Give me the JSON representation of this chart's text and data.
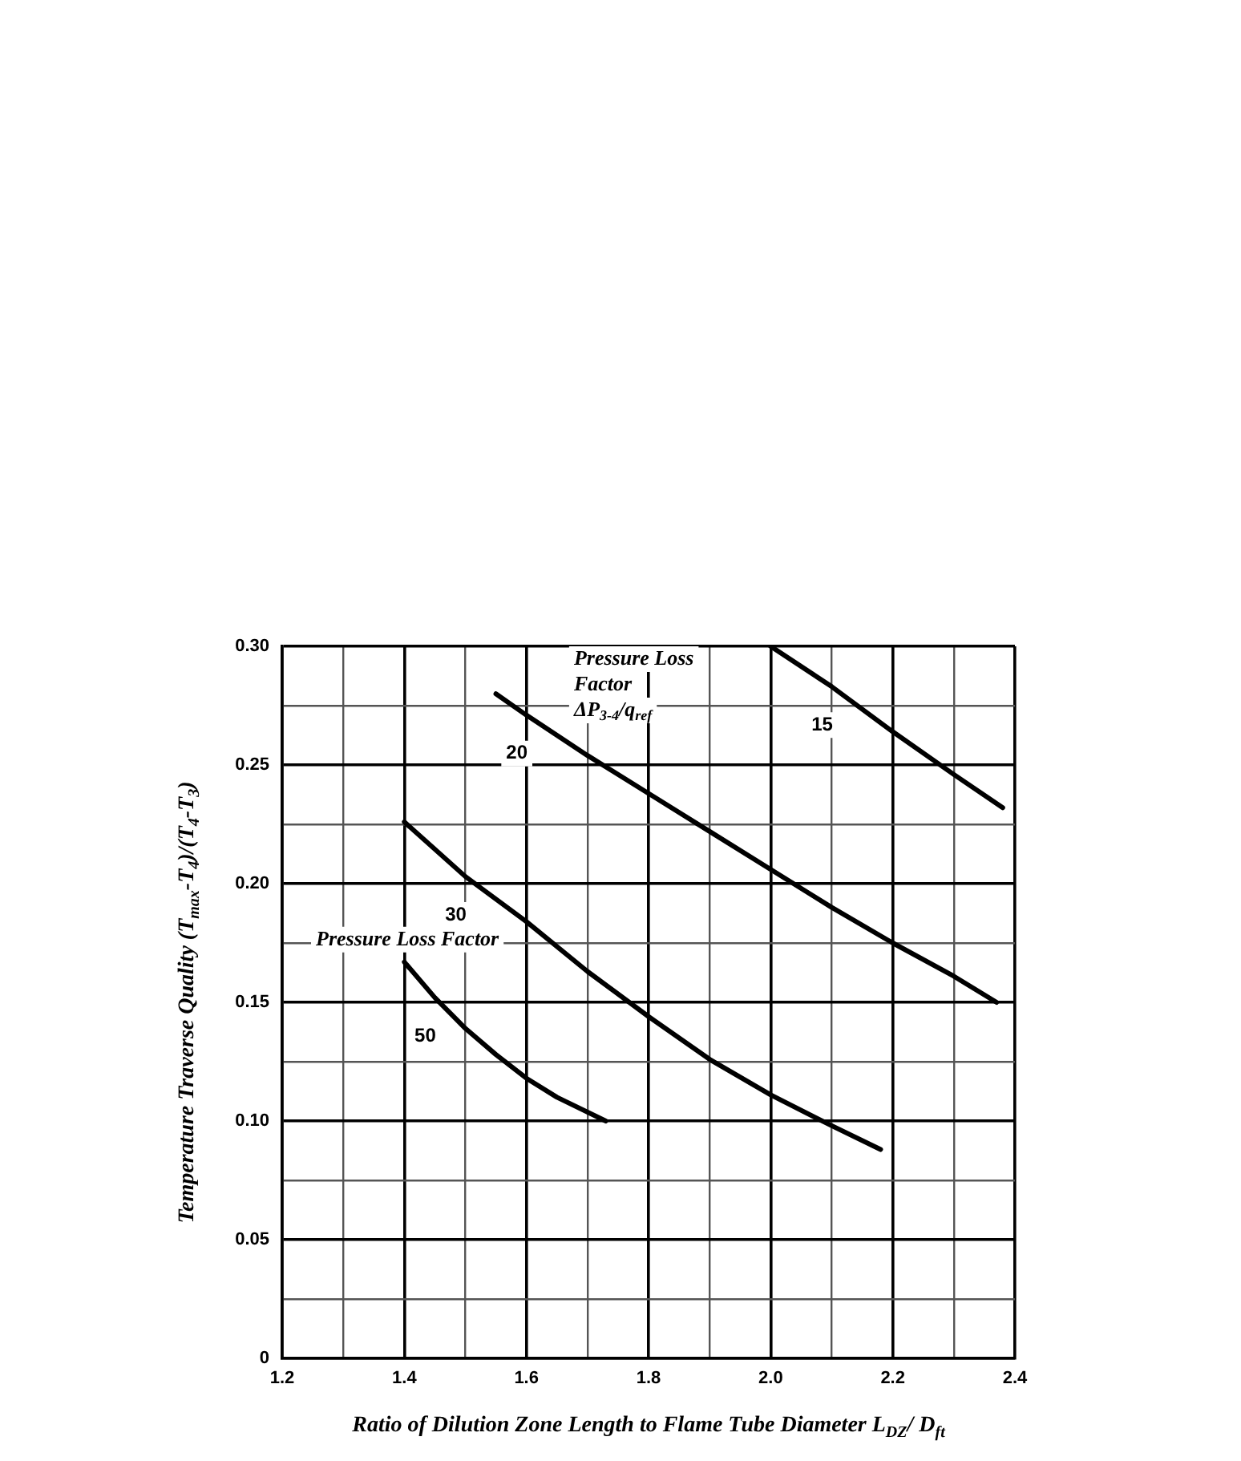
{
  "chart_data": {
    "type": "line",
    "xlabel": "Ratio of Dilution Zone Length to Flame Tube Diameter L$_{DZ}$/ D$_{ft}$",
    "ylabel": "Temperature Traverse Quality (T$_{max}$-T$_{4}$)/(T$_{4}$-T$_{3}$)",
    "annotations": [
      "Pressure Loss Factor ΔP$_{3-4}$/q$_{ref}$",
      "Pressure Loss Factor"
    ],
    "xlim": [
      1.2,
      2.4
    ],
    "xticks": [
      1.2,
      {
        "value": 1.3,
        "label": null
      },
      1.4,
      {
        "value": 1.5,
        "label": null
      },
      1.6,
      {
        "value": 1.7,
        "label": null
      },
      1.8,
      {
        "value": 1.9,
        "label": null
      },
      {
        "value": 2,
        "label": "2.0"
      },
      {
        "value": 2.1,
        "label": null
      },
      2.2,
      {
        "value": 2.3,
        "label": null
      },
      2.4
    ],
    "ylim": [
      0,
      0.3
    ],
    "yticks": [
      0,
      {
        "value": 0.025,
        "label": null
      },
      0.05,
      {
        "value": 0.075,
        "label": null
      },
      {
        "value": 0.1,
        "label": "0.10"
      },
      {
        "value": 0.125,
        "label": null
      },
      0.15,
      {
        "value": 0.175,
        "label": null
      },
      {
        "value": 0.2,
        "label": "0.20"
      },
      {
        "value": 0.225,
        "label": null
      },
      0.25,
      {
        "value": 0.275,
        "label": null
      },
      {
        "value": 0.3,
        "label": "0.30"
      }
    ],
    "grid": true,
    "legend": false,
    "marker": "none",
    "line_style": "solid",
    "series": [
      {
        "name": "15",
        "color": "#000000",
        "x": [
          2.0,
          2.1,
          2.2,
          2.3,
          2.38
        ],
        "values": [
          0.3,
          0.283,
          0.264,
          0.246,
          0.232
        ]
      },
      {
        "name": "20",
        "color": "#000000",
        "x": [
          1.55,
          1.6,
          1.7,
          1.8,
          1.9,
          2.0,
          2.1,
          2.2,
          2.3,
          2.37
        ],
        "values": [
          0.28,
          0.271,
          0.254,
          0.238,
          0.222,
          0.206,
          0.19,
          0.175,
          0.161,
          0.15
        ]
      },
      {
        "name": "30",
        "color": "#000000",
        "x": [
          1.4,
          1.5,
          1.6,
          1.7,
          1.8,
          1.9,
          2.0,
          2.1,
          2.18
        ],
        "values": [
          0.226,
          0.203,
          0.184,
          0.163,
          0.144,
          0.126,
          0.111,
          0.098,
          0.088
        ]
      },
      {
        "name": "50",
        "color": "#000000",
        "x": [
          1.4,
          1.45,
          1.5,
          1.55,
          1.6,
          1.65,
          1.73
        ],
        "values": [
          0.167,
          0.152,
          0.139,
          0.128,
          0.118,
          0.11,
          0.1
        ]
      }
    ]
  }
}
